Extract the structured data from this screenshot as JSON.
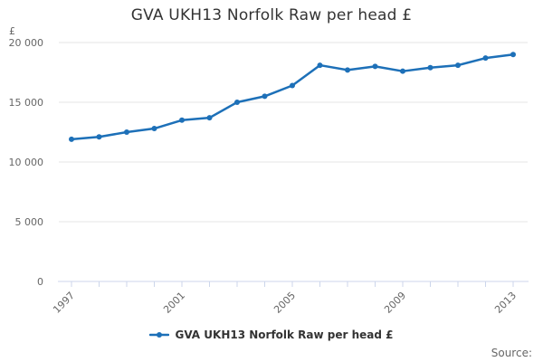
{
  "chart_data": {
    "type": "line",
    "title": "GVA UKH13 Norfolk Raw per head £",
    "source_label": "Source:",
    "y_axis": {
      "unit": "£",
      "min": 0,
      "max": 20000,
      "ticks": [
        0,
        5000,
        10000,
        15000,
        20000
      ],
      "tick_labels": [
        "0",
        "5 000",
        "10 000",
        "15 000",
        "20 000"
      ],
      "grid": true
    },
    "x_axis": {
      "years": [
        1997,
        1998,
        1999,
        2000,
        2001,
        2002,
        2003,
        2004,
        2005,
        2006,
        2007,
        2008,
        2009,
        2010,
        2011,
        2012,
        2013
      ],
      "labeled_ticks": [
        1997,
        2001,
        2005,
        2009,
        2013
      ],
      "label_rotation": -45
    },
    "series": [
      {
        "name": "GVA UKH13 Norfolk Raw per head £",
        "color": "#1d70b8",
        "x": [
          1997,
          1998,
          1999,
          2000,
          2001,
          2002,
          2003,
          2004,
          2005,
          2006,
          2007,
          2008,
          2009,
          2010,
          2011,
          2012,
          2013
        ],
        "values": [
          11900,
          12100,
          12500,
          12800,
          13500,
          13700,
          15000,
          15500,
          16400,
          18100,
          17700,
          18000,
          17600,
          17900,
          18100,
          18700,
          19000
        ]
      }
    ],
    "legend": {
      "position": "bottom-center",
      "label": "GVA UKH13 Norfolk Raw per head £"
    },
    "colors": {
      "line": "#1d70b8",
      "grid": "#e6e6e6",
      "axis": "#ccd6eb",
      "label_text": "#666666",
      "title_text": "#333333"
    }
  }
}
